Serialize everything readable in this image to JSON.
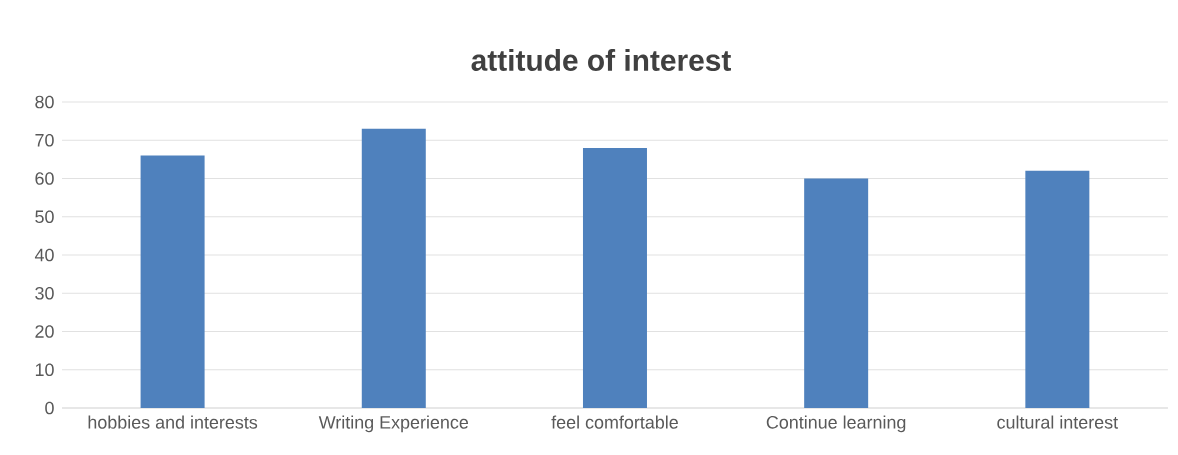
{
  "chart_data": {
    "type": "bar",
    "title": "attitude of interest",
    "categories": [
      "hobbies and interests",
      "Writing Experience",
      "feel comfortable",
      "Continue learning",
      "cultural interest"
    ],
    "values": [
      66,
      73,
      68,
      60,
      62
    ],
    "color": "#4f81bd",
    "ylim": [
      0,
      80
    ],
    "yticks": [
      0,
      10,
      20,
      30,
      40,
      50,
      60,
      70,
      80
    ],
    "grid": "y"
  }
}
